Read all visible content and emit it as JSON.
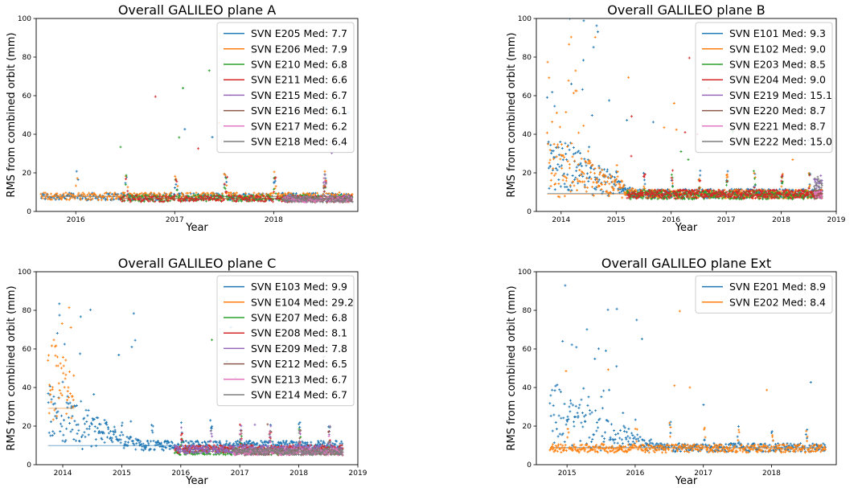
{
  "chart_data": [
    {
      "type": "scatter",
      "title": "Overall GALILEO plane A",
      "xlabel": "Year",
      "ylabel": "RMS from combined orbit (mm)",
      "xlim": [
        2015.6,
        2018.85
      ],
      "ylim": [
        0,
        100
      ],
      "x_ticks": [
        2016,
        2017,
        2018
      ],
      "y_ticks": [
        0,
        20,
        40,
        60,
        80,
        100
      ],
      "legend_position": "top-right",
      "series": [
        {
          "name": "SVN E205 Med: 7.7",
          "color": "#1f77b4",
          "start": 2015.65,
          "end": 2018.8,
          "median": 7.7
        },
        {
          "name": "SVN E206 Med: 7.9",
          "color": "#ff7f0e",
          "start": 2015.65,
          "end": 2018.8,
          "median": 7.9
        },
        {
          "name": "SVN E210 Med: 6.8",
          "color": "#2ca02c",
          "start": 2016.45,
          "end": 2018.8,
          "median": 6.8
        },
        {
          "name": "SVN E211 Med: 6.6",
          "color": "#d62728",
          "start": 2016.45,
          "end": 2018.8,
          "median": 6.6
        },
        {
          "name": "SVN E215 Med: 6.7",
          "color": "#9467bd",
          "start": 2018.1,
          "end": 2018.8,
          "median": 6.7
        },
        {
          "name": "SVN E216 Med: 6.1",
          "color": "#8c564b",
          "start": 2018.1,
          "end": 2018.8,
          "median": 6.1
        },
        {
          "name": "SVN E217 Med: 6.2",
          "color": "#e377c2",
          "start": 2018.1,
          "end": 2018.8,
          "median": 6.2
        },
        {
          "name": "SVN E218 Med: 6.4",
          "color": "#7f7f7f",
          "start": 2018.1,
          "end": 2018.8,
          "median": 6.4
        }
      ]
    },
    {
      "type": "scatter",
      "title": "Overall GALILEO plane B",
      "xlabel": "Year",
      "ylabel": "RMS from combined orbit (mm)",
      "xlim": [
        2013.55,
        2019.0
      ],
      "ylim": [
        0,
        100
      ],
      "x_ticks": [
        2014,
        2015,
        2016,
        2017,
        2018,
        2019
      ],
      "y_ticks": [
        0,
        20,
        40,
        60,
        80,
        100
      ],
      "legend_position": "top-right",
      "series": [
        {
          "name": "SVN E101 Med: 9.3",
          "color": "#1f77b4",
          "start": 2013.75,
          "end": 2018.75,
          "median": 9.3
        },
        {
          "name": "SVN E102 Med: 9.0",
          "color": "#ff7f0e",
          "start": 2013.75,
          "end": 2018.75,
          "median": 9.0
        },
        {
          "name": "SVN E203 Med: 8.5",
          "color": "#2ca02c",
          "start": 2015.2,
          "end": 2018.75,
          "median": 8.5
        },
        {
          "name": "SVN E204 Med: 9.0",
          "color": "#d62728",
          "start": 2015.2,
          "end": 2018.75,
          "median": 9.0
        },
        {
          "name": "SVN E219 Med: 15.1",
          "color": "#9467bd",
          "start": 2018.6,
          "end": 2018.75,
          "median": 15.1
        },
        {
          "name": "SVN E220 Med: 8.7",
          "color": "#8c564b",
          "start": 2018.6,
          "end": 2018.75,
          "median": 8.7
        },
        {
          "name": "SVN E221 Med: 8.7",
          "color": "#e377c2",
          "start": 2018.6,
          "end": 2018.75,
          "median": 8.7
        },
        {
          "name": "SVN E222 Med: 15.0",
          "color": "#7f7f7f",
          "start": 2018.6,
          "end": 2018.75,
          "median": 15.0
        }
      ]
    },
    {
      "type": "scatter",
      "title": "Overall GALILEO plane C",
      "xlabel": "Year",
      "ylabel": "RMS from combined orbit (mm)",
      "xlim": [
        2013.55,
        2019.0
      ],
      "ylim": [
        0,
        100
      ],
      "x_ticks": [
        2014,
        2015,
        2016,
        2017,
        2018,
        2019
      ],
      "y_ticks": [
        0,
        20,
        40,
        60,
        80,
        100
      ],
      "legend_position": "top-right",
      "series": [
        {
          "name": "SVN E103 Med: 9.9",
          "color": "#1f77b4",
          "start": 2013.75,
          "end": 2018.75,
          "median": 9.9
        },
        {
          "name": "SVN E104 Med: 29.2",
          "color": "#ff7f0e",
          "start": 2013.75,
          "end": 2014.2,
          "median": 29.2
        },
        {
          "name": "SVN E207 Med: 6.8",
          "color": "#2ca02c",
          "start": 2015.9,
          "end": 2018.75,
          "median": 6.8
        },
        {
          "name": "SVN E208 Med: 8.1",
          "color": "#d62728",
          "start": 2015.9,
          "end": 2018.75,
          "median": 8.1
        },
        {
          "name": "SVN E209 Med: 7.8",
          "color": "#9467bd",
          "start": 2015.9,
          "end": 2018.75,
          "median": 7.8
        },
        {
          "name": "SVN E212 Med: 6.5",
          "color": "#8c564b",
          "start": 2016.9,
          "end": 2018.75,
          "median": 6.5
        },
        {
          "name": "SVN E213 Med: 6.7",
          "color": "#e377c2",
          "start": 2016.9,
          "end": 2018.75,
          "median": 6.7
        },
        {
          "name": "SVN E214 Med: 6.7",
          "color": "#7f7f7f",
          "start": 2016.9,
          "end": 2018.75,
          "median": 6.7
        }
      ]
    },
    {
      "type": "scatter",
      "title": "Overall GALILEO plane Ext",
      "xlabel": "Year",
      "ylabel": "RMS from combined orbit (mm)",
      "xlim": [
        2014.55,
        2018.95
      ],
      "ylim": [
        0,
        100
      ],
      "x_ticks": [
        2015,
        2016,
        2017,
        2018
      ],
      "y_ticks": [
        0,
        20,
        40,
        60,
        80,
        100
      ],
      "legend_position": "top-right",
      "series": [
        {
          "name": "SVN E201 Med: 8.9",
          "color": "#1f77b4",
          "start": 2014.75,
          "end": 2018.8,
          "median": 8.9
        },
        {
          "name": "SVN E202 Med: 8.4",
          "color": "#ff7f0e",
          "start": 2014.75,
          "end": 2018.8,
          "median": 8.4
        }
      ]
    }
  ]
}
